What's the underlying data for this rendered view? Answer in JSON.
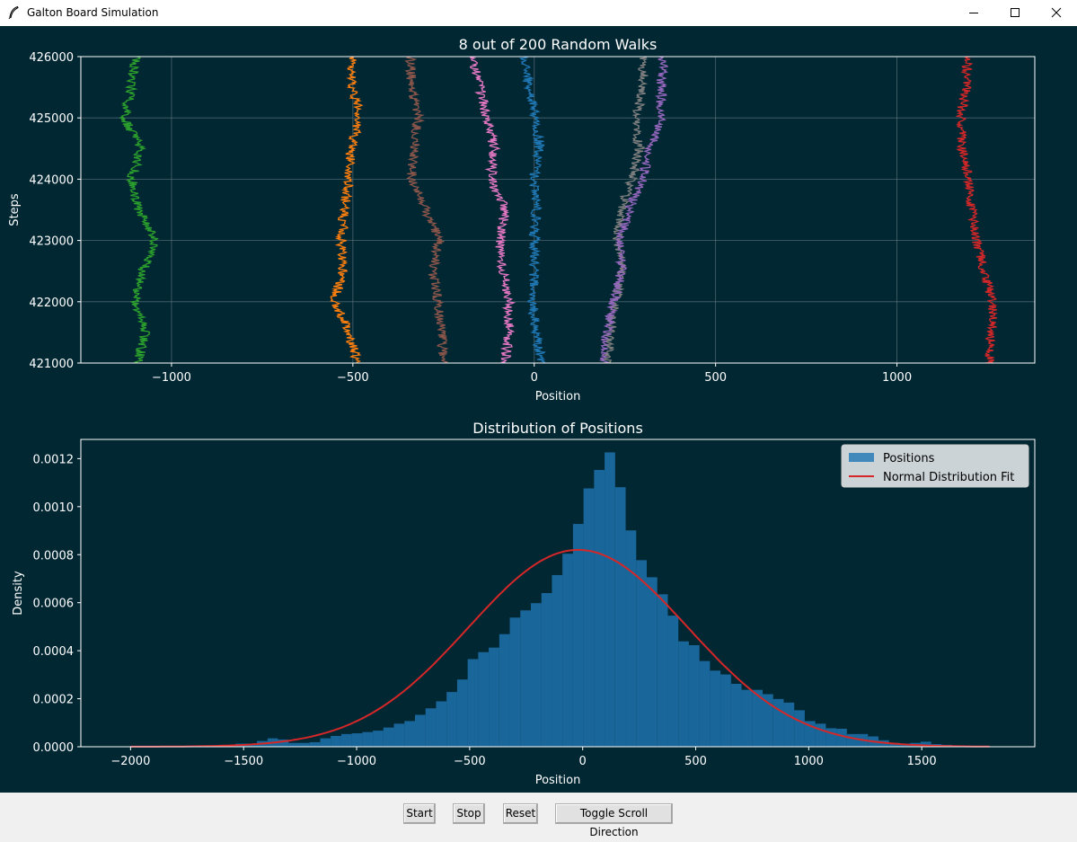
{
  "window": {
    "title": "Galton Board Simulation"
  },
  "toolbar": {
    "start_label": "Start",
    "stop_label": "Stop",
    "reset_label": "Reset",
    "toggle_label": "Toggle Scroll Direction"
  },
  "colors": {
    "figure_bg": "#012733",
    "text": "#ffffff",
    "grid": "#6b7f86",
    "hist": "#1f77b4",
    "fit": "#d62728"
  },
  "chart_data": [
    {
      "type": "line",
      "title": "8 out of 200 Random Walks",
      "xlabel": "Position",
      "ylabel": "Steps",
      "xlim": [
        -1250,
        1380
      ],
      "ylim": [
        421000,
        426000
      ],
      "xticks": [
        -1000,
        -500,
        0,
        500,
        1000
      ],
      "xticklabels": [
        "−1000",
        "−500",
        "0",
        "500",
        "1000"
      ],
      "yticks": [
        421000,
        422000,
        423000,
        424000,
        425000,
        426000
      ],
      "yticklabels": [
        "421000",
        "422000",
        "423000",
        "424000",
        "425000",
        "426000"
      ],
      "grid": true,
      "series": [
        {
          "color": "#2ca02c",
          "y": [
            421000,
            421500,
            422000,
            422500,
            423000,
            423500,
            424000,
            424500,
            425000,
            425500,
            426000
          ],
          "x": [
            -1095,
            -1070,
            -1100,
            -1080,
            -1045,
            -1090,
            -1110,
            -1085,
            -1130,
            -1110,
            -1100
          ]
        },
        {
          "color": "#ff7f0e",
          "y": [
            421000,
            421500,
            422000,
            422500,
            423000,
            423500,
            424000,
            424500,
            425000,
            425500,
            426000
          ],
          "x": [
            -490,
            -510,
            -550,
            -530,
            -530,
            -525,
            -510,
            -505,
            -480,
            -500,
            -500
          ]
        },
        {
          "color": "#8c564b",
          "y": [
            421000,
            421500,
            422000,
            422500,
            423000,
            423500,
            424000,
            424500,
            425000,
            425500,
            426000
          ],
          "x": [
            -250,
            -255,
            -265,
            -280,
            -260,
            -300,
            -340,
            -330,
            -320,
            -340,
            -340
          ]
        },
        {
          "color": "#e377c2",
          "y": [
            421000,
            421500,
            422000,
            422500,
            423000,
            423500,
            424000,
            424500,
            425000,
            425500,
            426000
          ],
          "x": [
            -80,
            -70,
            -70,
            -85,
            -95,
            -80,
            -120,
            -110,
            -130,
            -150,
            -170
          ]
        },
        {
          "color": "#1f77b4",
          "y": [
            421000,
            421500,
            422000,
            422500,
            423000,
            423500,
            424000,
            424500,
            425000,
            425500,
            426000
          ],
          "x": [
            20,
            5,
            -5,
            0,
            0,
            5,
            0,
            15,
            5,
            -15,
            -30
          ]
        },
        {
          "color": "#7f7f7f",
          "y": [
            421000,
            421500,
            422000,
            422500,
            423000,
            423500,
            424000,
            424500,
            425000,
            425500,
            426000
          ],
          "x": [
            200,
            210,
            225,
            240,
            230,
            240,
            270,
            290,
            280,
            300,
            300
          ]
        },
        {
          "color": "#9467bd",
          "y": [
            421000,
            421500,
            422000,
            422500,
            423000,
            423500,
            424000,
            424500,
            425000,
            425500,
            426000
          ],
          "x": [
            190,
            200,
            220,
            240,
            235,
            260,
            300,
            320,
            350,
            350,
            355
          ]
        },
        {
          "color": "#d62728",
          "y": [
            421000,
            421500,
            422000,
            422500,
            423000,
            423500,
            424000,
            424500,
            425000,
            425500,
            426000
          ],
          "x": [
            1255,
            1260,
            1265,
            1240,
            1220,
            1205,
            1200,
            1180,
            1175,
            1190,
            1195
          ]
        }
      ]
    },
    {
      "type": "bar",
      "title": "Distribution of Positions",
      "xlabel": "Position",
      "ylabel": "Density",
      "xlim": [
        -2220,
        2000
      ],
      "ylim": [
        0,
        0.00128
      ],
      "xticks": [
        -2000,
        -1500,
        -1000,
        -500,
        0,
        500,
        1000,
        1500
      ],
      "xticklabels": [
        "−2000",
        "−1500",
        "−1000",
        "−500",
        "0",
        "500",
        "1000",
        "1500"
      ],
      "yticks": [
        0,
        0.0002,
        0.0004,
        0.0006,
        0.0008,
        0.001,
        0.0012
      ],
      "yticklabels": [
        "0.0000",
        "0.0002",
        "0.0004",
        "0.0006",
        "0.0008",
        "0.0010",
        "0.0012"
      ],
      "grid": false,
      "legend_position": "top-right",
      "legend": [
        "Positions",
        "Normal Distribution Fit"
      ],
      "bin_width": 46.6,
      "hist_x_start": -2000,
      "hist_values": [
        3e-06,
        3e-06,
        3e-06,
        3e-06,
        3e-06,
        3e-06,
        3e-06,
        3e-06,
        3e-06,
        3e-06,
        1.3e-05,
        1.3e-05,
        2.4e-05,
        3.5e-05,
        3e-05,
        1.6e-05,
        1.6e-05,
        1.9e-05,
        3.5e-05,
        4.5e-05,
        5.3e-05,
        5.6e-05,
        6.1e-05,
        6.7e-05,
        8e-05,
        9.6e-05,
        0.000107,
        0.000133,
        0.00016,
        0.000189,
        0.000228,
        0.00028,
        0.000365,
        0.000394,
        0.000413,
        0.000469,
        0.000538,
        0.000568,
        0.000598,
        0.00064,
        0.000715,
        0.000804,
        0.000928,
        0.001076,
        0.001153,
        0.001226,
        0.001081,
        0.000901,
        0.000777,
        0.000706,
        0.000635,
        0.000546,
        0.000439,
        0.000423,
        0.000357,
        0.000317,
        0.000301,
        0.000262,
        0.000237,
        0.000237,
        0.000219,
        0.000199,
        0.000184,
        0.000152,
        0.000107,
        9.6e-05,
        7.7e-05,
        7.5e-05,
        5.3e-05,
        5.3e-05,
        4.3e-05,
        2.7e-05,
        1.6e-05,
        1.3e-05,
        1.6e-05,
        2.1e-05,
        1.1e-05,
        8e-06,
        3e-06,
        3e-06
      ],
      "normal_fit": {
        "mean": -20,
        "std": 485,
        "peak": 0.00082
      }
    }
  ]
}
